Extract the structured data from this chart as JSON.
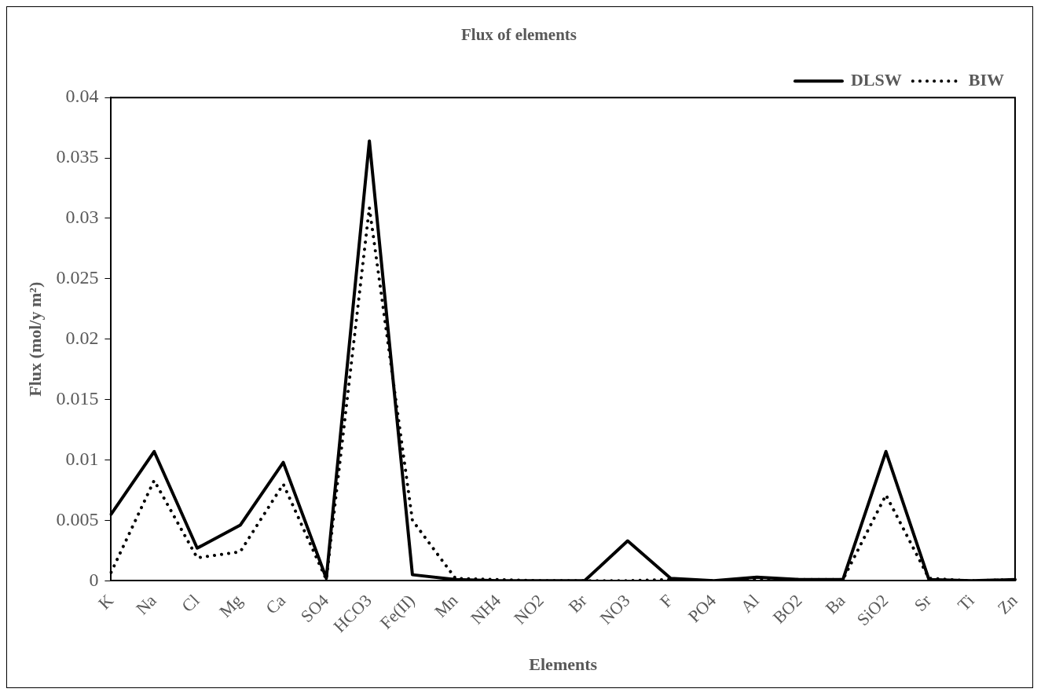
{
  "chart_data": {
    "type": "line",
    "title": "Flux of elements",
    "xlabel": "Elements",
    "ylabel": "Flux (mol/y m²)",
    "categories": [
      "K",
      "Na",
      "Cl",
      "Mg",
      "Ca",
      "SO4",
      "HCO3",
      "Fe(II)",
      "Mn",
      "NH4",
      "NO2",
      "Br",
      "NO3",
      "F",
      "PO4",
      "Al",
      "BO2",
      "Ba",
      "SiO2",
      "Sr",
      "Ti",
      "Zn"
    ],
    "series": [
      {
        "name": "DLSW",
        "color": "#000000",
        "line_style": "solid",
        "values": [
          0.0055,
          0.0107,
          0.0027,
          0.0046,
          0.0098,
          0.0002,
          0.0364,
          0.0005,
          0.0001,
          0,
          0,
          0,
          0.0033,
          0.0002,
          0,
          0.0003,
          0.0001,
          0.0001,
          0.0107,
          0.0001,
          0,
          0.0001
        ]
      },
      {
        "name": "BIW",
        "color": "#000000",
        "line_style": "dotted",
        "values": [
          0.0007,
          0.0083,
          0.0019,
          0.0024,
          0.008,
          0.0001,
          0.0309,
          0.005,
          0.0002,
          0.0001,
          0,
          0,
          0,
          0.0001,
          0,
          0.0001,
          0.0001,
          0.0001,
          0.0071,
          0.0002,
          0,
          0.0001
        ]
      }
    ],
    "ylim": [
      0,
      0.04
    ],
    "yticks": [
      0,
      0.005,
      0.01,
      0.015,
      0.02,
      0.025,
      0.03,
      0.035,
      0.04
    ],
    "legend": "top right",
    "grid": false,
    "marker": "none"
  }
}
